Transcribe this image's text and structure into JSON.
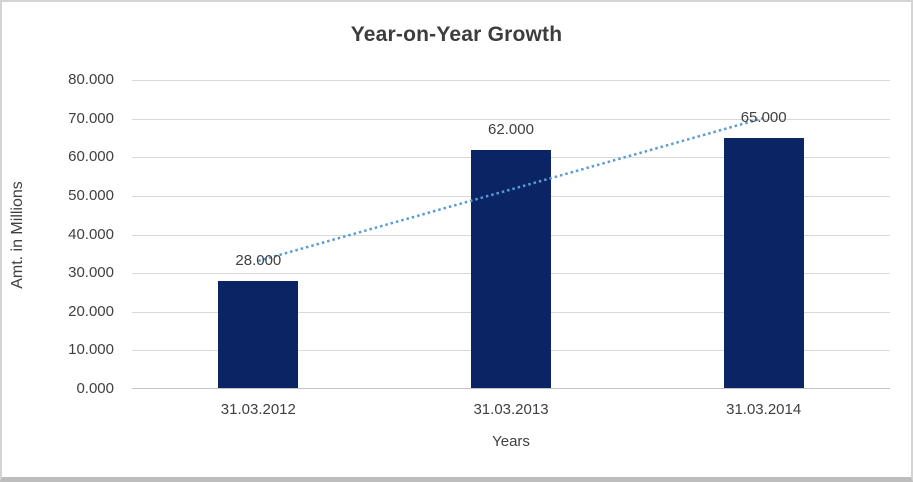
{
  "frame": {
    "background": "#ffffff",
    "border_color": "#d4d4d4",
    "bottom_edge_color": "#bdbdbd"
  },
  "chart_data": {
    "type": "bar",
    "title": "Year-on-Year Growth",
    "categories": [
      "31.03.2012",
      "31.03.2013",
      "31.03.2014"
    ],
    "values": [
      28,
      62,
      65
    ],
    "data_labels": [
      "28.000",
      "62.000",
      "65.000"
    ],
    "xlabel": "Years",
    "ylabel": "Amt. in Millions",
    "ylim": [
      0,
      80
    ],
    "ytick_step": 10,
    "ytick_labels": [
      "0.000",
      "10.000",
      "20.000",
      "30.000",
      "40.000",
      "50.000",
      "60.000",
      "70.000",
      "80.000"
    ],
    "grid": true,
    "legend": "none",
    "bar_color": "#0a2464",
    "axis_text_color": "#404040",
    "gridline_color": "#d9d9d9",
    "trendline": {
      "type": "linear",
      "style": "dotted",
      "color": "#5b9bd5",
      "endpoints_values": [
        33.167,
        70.167
      ]
    }
  }
}
